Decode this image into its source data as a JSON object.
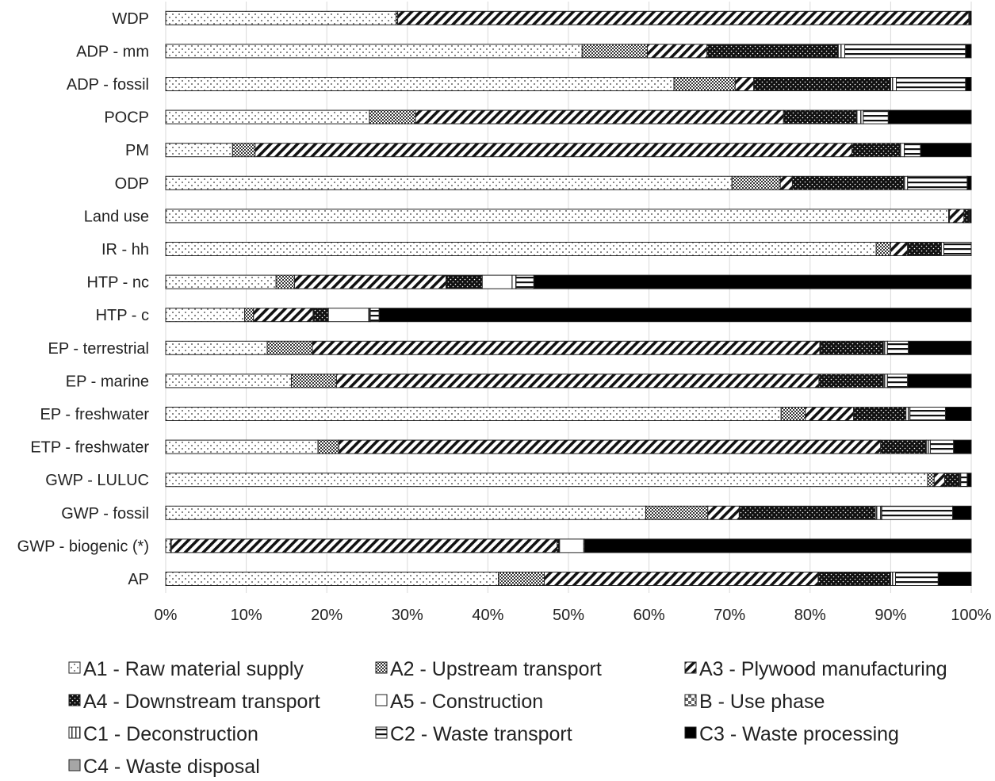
{
  "chart_data": {
    "type": "bar",
    "orientation": "horizontal",
    "stacked": true,
    "normalized": true,
    "title": "",
    "xlabel": "",
    "ylabel": "",
    "xlim": [
      0,
      100
    ],
    "x_ticks": [
      0,
      10,
      20,
      30,
      40,
      50,
      60,
      70,
      80,
      90,
      100
    ],
    "x_tick_labels": [
      "0%",
      "10%",
      "20%",
      "30%",
      "40%",
      "50%",
      "60%",
      "70%",
      "80%",
      "90%",
      "100%"
    ],
    "grid": true,
    "legend_position": "bottom",
    "categories": [
      "WDP",
      "ADP - mm",
      "ADP - fossil",
      "POCP",
      "PM",
      "ODP",
      "Land use",
      "IR - hh",
      "HTP - nc",
      "HTP - c",
      "EP - terrestrial",
      "EP - marine",
      "EP - freshwater",
      "ETP - freshwater",
      "GWP - LULUC",
      "GWP - fossil",
      "GWP - biogenic (*)",
      "AP"
    ],
    "series": [
      {
        "name": "A1 - Raw material supply",
        "pattern": "dots-light",
        "color": "#ffffff",
        "values": [
          28.6,
          51.7,
          63.1,
          25.3,
          8.3,
          70.3,
          97.2,
          88.2,
          13.7,
          9.8,
          12.6,
          15.6,
          76.4,
          19.0,
          94.6,
          59.6,
          0.6,
          41.3
        ]
      },
      {
        "name": "A2 - Upstream transport",
        "pattern": "crosshatch",
        "color": "#555555",
        "values": [
          0.2,
          8.1,
          7.6,
          5.7,
          2.8,
          6.0,
          0.1,
          1.8,
          2.3,
          1.1,
          5.6,
          5.6,
          3.0,
          2.6,
          0.8,
          7.7,
          0.1,
          5.7
        ]
      },
      {
        "name": "A3 - Plywood manufacturing",
        "pattern": "diagonal",
        "color": "#1a1a1a",
        "values": [
          70.9,
          7.4,
          2.3,
          45.7,
          74.1,
          1.5,
          1.8,
          2.1,
          18.8,
          7.4,
          63.0,
          59.9,
          6.0,
          67.6,
          1.3,
          3.9,
          47.9,
          34.0
        ]
      },
      {
        "name": "A4 - Downstream transport",
        "pattern": "dots-dense",
        "color": "#111111",
        "values": [
          0.1,
          16.3,
          17.0,
          9.1,
          6.0,
          13.8,
          0.6,
          4.2,
          4.5,
          1.9,
          7.9,
          8.0,
          6.5,
          5.7,
          1.8,
          16.9,
          0.3,
          9.0
        ]
      },
      {
        "name": "A5 - Construction",
        "pattern": "blank",
        "color": "#ffffff",
        "values": [
          0.0,
          0.0,
          0.0,
          0.0,
          0.0,
          0.0,
          0.0,
          0.0,
          3.7,
          5.0,
          0.0,
          0.0,
          0.0,
          0.0,
          0.0,
          0.0,
          3.0,
          0.0
        ]
      },
      {
        "name": "B - Use phase",
        "pattern": "checker",
        "color": "#777777",
        "values": [
          0.0,
          0.0,
          0.0,
          0.0,
          0.0,
          0.0,
          0.0,
          0.0,
          0.0,
          0.0,
          0.0,
          0.0,
          0.0,
          0.0,
          0.0,
          0.0,
          0.0,
          0.0
        ]
      },
      {
        "name": "C1 - Deconstruction",
        "pattern": "vertical",
        "color": "#bbbbbb",
        "values": [
          0.0,
          0.8,
          0.7,
          0.8,
          0.5,
          0.5,
          0.0,
          0.3,
          0.5,
          0.2,
          0.5,
          0.5,
          0.5,
          0.5,
          0.2,
          0.8,
          0.0,
          0.6
        ]
      },
      {
        "name": "C2 - Waste transport",
        "pattern": "horizontal",
        "color": "#222222",
        "values": [
          0.0,
          15.0,
          8.6,
          3.1,
          2.0,
          7.4,
          0.1,
          3.4,
          2.2,
          1.1,
          2.6,
          2.5,
          4.4,
          2.9,
          0.8,
          8.8,
          0.1,
          5.3
        ]
      },
      {
        "name": "C3 - Waste processing",
        "pattern": "solid",
        "color": "#000000",
        "values": [
          0.2,
          0.7,
          0.7,
          10.3,
          6.3,
          0.5,
          0.2,
          0.0,
          54.3,
          73.5,
          7.8,
          7.9,
          3.2,
          2.2,
          0.5,
          2.3,
          48.0,
          4.1
        ]
      },
      {
        "name": "C4 - Waste disposal",
        "pattern": "gray",
        "color": "#a6a6a6",
        "values": [
          0.0,
          0.0,
          0.0,
          0.0,
          0.0,
          0.0,
          0.0,
          0.0,
          0.0,
          0.0,
          0.0,
          0.0,
          0.0,
          0.0,
          0.0,
          0.0,
          0.0,
          0.0
        ]
      }
    ]
  }
}
